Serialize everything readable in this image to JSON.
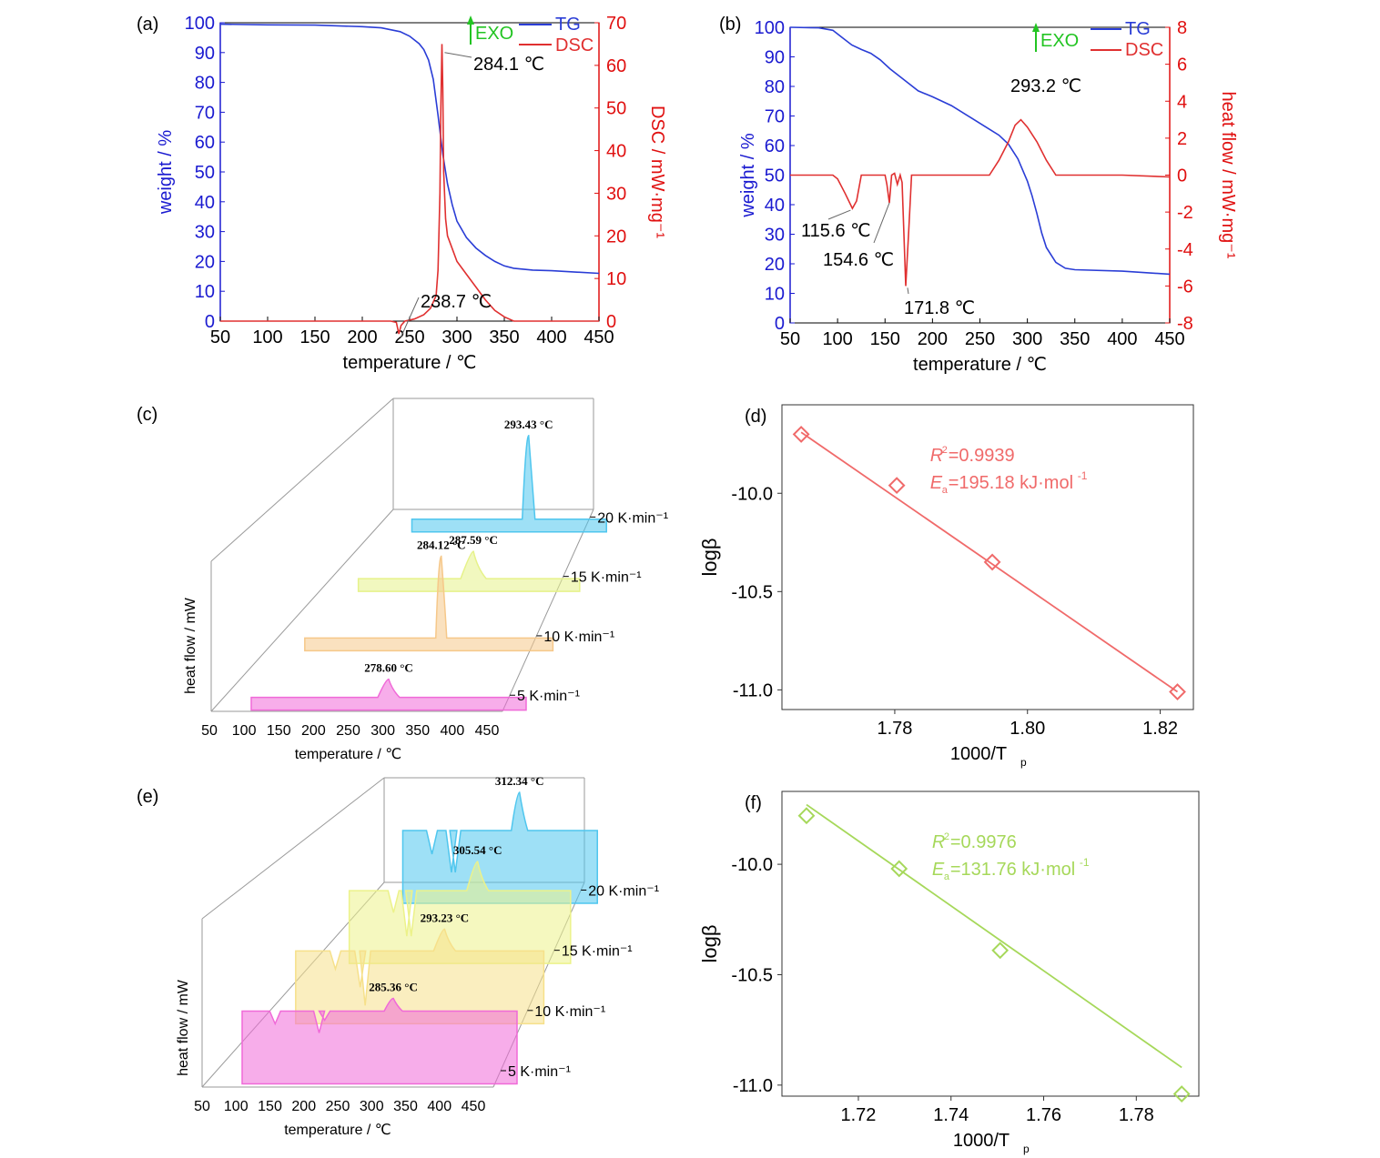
{
  "chart_data": [
    {
      "id": "a",
      "panel_label": "(a)",
      "type": "line",
      "xlabel": "temperature / ℃",
      "ylabel_left": "weight / %",
      "ylabel_right": "DSC / mW·mg⁻¹",
      "xlim": [
        50,
        450
      ],
      "ylim_left": [
        0,
        100
      ],
      "ylim_right": [
        0,
        70
      ],
      "x_ticks": [
        50,
        100,
        150,
        200,
        250,
        300,
        350,
        400,
        450
      ],
      "y_ticks_left": [
        0,
        10,
        20,
        30,
        40,
        50,
        60,
        70,
        80,
        90,
        100
      ],
      "y_ticks_right": [
        0,
        10,
        20,
        30,
        40,
        50,
        60,
        70
      ],
      "legend": {
        "exo": "EXO",
        "items": [
          "TG",
          "DSC"
        ]
      },
      "colors": {
        "TG": "#2a3dd6",
        "DSC": "#e03030",
        "exo": "#22c422",
        "left_axis": "#1a1ad0",
        "right_axis": "#e01010"
      },
      "series": [
        {
          "name": "TG",
          "axis": "left",
          "x": [
            50,
            100,
            150,
            200,
            220,
            240,
            250,
            260,
            265,
            270,
            275,
            280,
            285,
            290,
            295,
            300,
            310,
            320,
            330,
            340,
            350,
            360,
            380,
            400,
            450
          ],
          "y": [
            99.5,
            99.3,
            99.2,
            98.7,
            98.3,
            97,
            95.5,
            93,
            91,
            87.5,
            81,
            69,
            56,
            46,
            39,
            33.5,
            28,
            24.5,
            22,
            20,
            18.5,
            17.7,
            17.1,
            16.9,
            16
          ]
        },
        {
          "name": "DSC",
          "axis": "right",
          "x": [
            50,
            200,
            230,
            236,
            238.7,
            241,
            245,
            255,
            265,
            272,
            278,
            280,
            282,
            283,
            284.1,
            285,
            286,
            288,
            290,
            295,
            300,
            310,
            320,
            330,
            340,
            350,
            360,
            400,
            450
          ],
          "y": [
            0,
            0,
            0,
            -0.3,
            -3,
            -1,
            0,
            0.5,
            1.5,
            3,
            6,
            12,
            30,
            50,
            65,
            55,
            35,
            24,
            20,
            17,
            14,
            11,
            8,
            5,
            2.5,
            1,
            0,
            0,
            0
          ]
        }
      ],
      "annotations": [
        "284.1 ℃",
        "238.7 ℃"
      ]
    },
    {
      "id": "b",
      "panel_label": "(b)",
      "type": "line",
      "xlabel": "temperature / ℃",
      "ylabel_left": "weight / %",
      "ylabel_right": "heat flow / mW·mg⁻¹",
      "xlim": [
        50,
        450
      ],
      "ylim_left": [
        0,
        100
      ],
      "ylim_right": [
        -8,
        8
      ],
      "x_ticks": [
        50,
        100,
        150,
        200,
        250,
        300,
        350,
        400,
        450
      ],
      "y_ticks_left": [
        0,
        10,
        20,
        30,
        40,
        50,
        60,
        70,
        80,
        90,
        100
      ],
      "y_ticks_right": [
        -8,
        -6,
        -4,
        -2,
        0,
        2,
        4,
        6,
        8
      ],
      "legend": {
        "exo": "EXO",
        "items": [
          "TG",
          "DSC"
        ]
      },
      "colors": {
        "TG": "#2a3dd6",
        "DSC": "#e03030",
        "exo": "#22c422",
        "left_axis": "#1a1ad0",
        "right_axis": "#e01010"
      },
      "series": [
        {
          "name": "TG",
          "axis": "left",
          "x": [
            50,
            80,
            95,
            105,
            115,
            125,
            135,
            145,
            155,
            165,
            175,
            185,
            200,
            220,
            240,
            260,
            270,
            280,
            290,
            300,
            305,
            310,
            315,
            320,
            330,
            340,
            350,
            400,
            450
          ],
          "y": [
            100,
            99.8,
            99,
            96.5,
            94,
            92.5,
            91.2,
            89,
            86,
            83.5,
            81,
            78.5,
            76.5,
            73.5,
            69.5,
            65.5,
            63.5,
            60.5,
            55.5,
            48,
            43,
            37,
            30.5,
            25.5,
            20.5,
            18.5,
            18,
            17.5,
            16.5
          ]
        },
        {
          "name": "DSC",
          "axis": "right",
          "x": [
            50,
            95,
            100,
            108,
            115.6,
            120,
            125,
            140,
            150,
            152,
            154.6,
            157,
            160,
            163,
            166,
            168,
            171.8,
            175,
            178,
            185,
            260,
            270,
            280,
            287,
            293.2,
            300,
            310,
            320,
            330,
            335,
            400,
            450
          ],
          "y": [
            0,
            0,
            -0.2,
            -1,
            -1.8,
            -1.4,
            0,
            0,
            0,
            -0.5,
            -1.5,
            0,
            0.1,
            -0.5,
            0,
            -0.4,
            -6,
            -3,
            0,
            0,
            0,
            0.8,
            1.8,
            2.7,
            3,
            2.6,
            1.8,
            0.8,
            0,
            0,
            0,
            -0.1
          ]
        }
      ],
      "annotations": [
        "293.2 ℃",
        "115.6 ℃",
        "154.6 ℃",
        "171.8 ℃"
      ]
    },
    {
      "id": "c",
      "panel_label": "(c)",
      "type": "area",
      "xlabel": "temperature / ℃",
      "ylabel": "heat flow / mW",
      "x_ticks": [
        50,
        100,
        150,
        200,
        250,
        300,
        350,
        400,
        450
      ],
      "series": [
        {
          "name": "5 K·min⁻¹",
          "color": "#f06ad8",
          "peak_label": "278.60 °C"
        },
        {
          "name": "10 K·min⁻¹",
          "color": "#f6c88a",
          "peak_label": "284.12 °C"
        },
        {
          "name": "15 K·min⁻¹",
          "color": "#e6f28a",
          "peak_label": "287.59 °C"
        },
        {
          "name": "20 K·min⁻¹",
          "color": "#4fc6ee",
          "peak_label": "293.43 °C"
        }
      ]
    },
    {
      "id": "d",
      "panel_label": "(d)",
      "type": "scatter",
      "xlabel": "1000/T",
      "xlabel_sub": "p",
      "ylabel": "logβ",
      "xlim": [
        1.763,
        1.825
      ],
      "ylim": [
        -11.1,
        -9.55
      ],
      "x_ticks": [
        1.78,
        1.8,
        1.82
      ],
      "x_tick_labels": [
        "1.78",
        "1.80",
        "1.82"
      ],
      "y_ticks": [
        -10.0,
        -10.5,
        -11.0
      ],
      "y_tick_labels": [
        "-10.0",
        "-10.5",
        "-11.0"
      ],
      "color": "#f06a6a",
      "points": {
        "x": [
          1.7659,
          1.7803,
          1.7947,
          1.8226
        ],
        "y": [
          -9.7,
          -9.96,
          -10.35,
          -11.01
        ]
      },
      "fit_line": {
        "x": [
          1.7659,
          1.8226
        ],
        "y": [
          -9.69,
          -11.01
        ]
      },
      "r2_value": "=0.9939",
      "ea_value": "=195.18 kJ·mol",
      "ea_sup": "-1"
    },
    {
      "id": "f",
      "panel_label": "(f)",
      "type": "scatter",
      "xlabel": "1000/T",
      "xlabel_sub": "p",
      "ylabel": "logβ",
      "xlim": [
        1.7035,
        1.7935
      ],
      "ylim": [
        -11.05,
        -9.67
      ],
      "x_ticks": [
        1.72,
        1.74,
        1.76,
        1.78
      ],
      "x_tick_labels": [
        "1.72",
        "1.74",
        "1.76",
        "1.78"
      ],
      "y_ticks": [
        -10.0,
        -10.5,
        -11.0
      ],
      "y_tick_labels": [
        "-10.0",
        "-10.5",
        "-11.0"
      ],
      "color": "#a6d85a",
      "points": {
        "x": [
          1.7088,
          1.7288,
          1.7506,
          1.7898
        ],
        "y": [
          -9.78,
          -10.02,
          -10.39,
          -11.04
        ]
      },
      "fit_line": {
        "x": [
          1.7088,
          1.7898
        ],
        "y": [
          -9.73,
          -10.92
        ]
      },
      "r2_value": "=0.9976",
      "ea_value": "=131.76 kJ·mol",
      "ea_sup": "-1"
    },
    {
      "id": "e",
      "panel_label": "(e)",
      "type": "area",
      "xlabel": "temperature / ℃",
      "ylabel": "heat flow / mW",
      "x_ticks": [
        50,
        100,
        150,
        200,
        250,
        300,
        350,
        400,
        450
      ],
      "series": [
        {
          "name": "5 K·min⁻¹",
          "color": "#f06ad8",
          "peak_label": "285.36 °C"
        },
        {
          "name": "10 K·min⁻¹",
          "color": "#f6e08a",
          "peak_label": "293.23 °C"
        },
        {
          "name": "15 K·min⁻¹",
          "color": "#ecf28a",
          "peak_label": "305.54 °C"
        },
        {
          "name": "20 K·min⁻¹",
          "color": "#4fc6ee",
          "peak_label": "312.34 °C"
        }
      ]
    }
  ]
}
